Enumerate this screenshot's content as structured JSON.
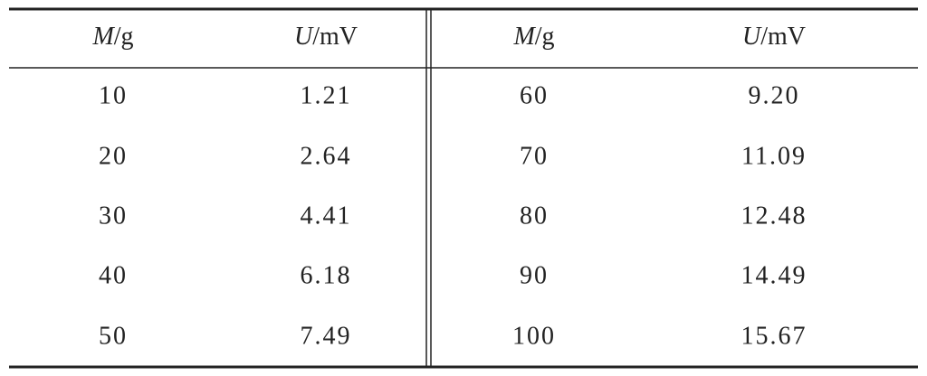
{
  "table": {
    "header": [
      "M/g",
      "U/mV",
      "M/g",
      "U/mV"
    ],
    "rows": [
      [
        "10",
        "1.21",
        "60",
        "9.20"
      ],
      [
        "20",
        "2.64",
        "70",
        "11.09"
      ],
      [
        "30",
        "4.41",
        "80",
        "12.48"
      ],
      [
        "40",
        "6.18",
        "90",
        "14.49"
      ],
      [
        "50",
        "7.49",
        "100",
        "15.67"
      ]
    ]
  }
}
